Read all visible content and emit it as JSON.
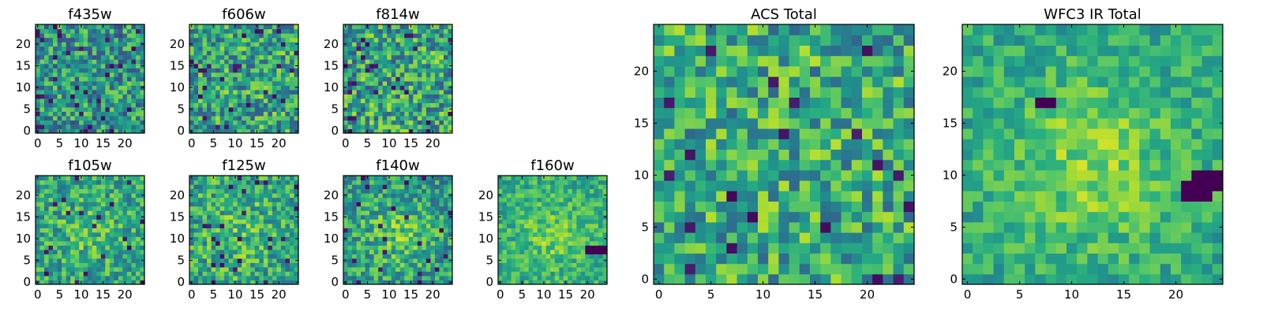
{
  "chart_data": [
    {
      "type": "heatmap",
      "title": "f435w",
      "size": [
        25,
        25
      ],
      "seed": 11,
      "base": 0.52,
      "spread": 0.3,
      "blob": 0.0,
      "dark": 0.05,
      "xticks": [
        0,
        5,
        10,
        15,
        20
      ],
      "xtick_labels": [
        "0",
        "5",
        "10",
        "15",
        "20"
      ],
      "yticks": [
        0,
        5,
        10,
        15,
        20
      ],
      "ytick_labels": [
        "0",
        "5",
        "10",
        "15",
        "20"
      ],
      "colormap": "viridis"
    },
    {
      "type": "heatmap",
      "title": "f606w",
      "size": [
        25,
        25
      ],
      "seed": 23,
      "base": 0.58,
      "spread": 0.3,
      "blob": 0.0,
      "dark": 0.04,
      "xticks": [
        0,
        5,
        10,
        15,
        20
      ],
      "xtick_labels": [
        "0",
        "5",
        "10",
        "15",
        "20"
      ],
      "yticks": [
        0,
        5,
        10,
        15,
        20
      ],
      "ytick_labels": [
        "0",
        "5",
        "10",
        "15",
        "20"
      ],
      "colormap": "viridis"
    },
    {
      "type": "heatmap",
      "title": "f814w",
      "size": [
        25,
        25
      ],
      "seed": 37,
      "base": 0.58,
      "spread": 0.32,
      "blob": 0.0,
      "dark": 0.05,
      "xticks": [
        0,
        5,
        10,
        15,
        20
      ],
      "xtick_labels": [
        "0",
        "5",
        "10",
        "15",
        "20"
      ],
      "yticks": [
        0,
        5,
        10,
        15,
        20
      ],
      "ytick_labels": [
        "0",
        "5",
        "10",
        "15",
        "20"
      ],
      "colormap": "viridis"
    },
    {
      "type": "heatmap",
      "title": "f105w",
      "size": [
        25,
        25
      ],
      "seed": 41,
      "base": 0.58,
      "spread": 0.24,
      "blob": 0.12,
      "dark": 0.04,
      "xticks": [
        0,
        5,
        10,
        15,
        20
      ],
      "xtick_labels": [
        "0",
        "5",
        "10",
        "15",
        "20"
      ],
      "yticks": [
        0,
        5,
        10,
        15,
        20
      ],
      "ytick_labels": [
        "0",
        "5",
        "10",
        "15",
        "20"
      ],
      "colormap": "viridis"
    },
    {
      "type": "heatmap",
      "title": "f125w",
      "size": [
        25,
        25
      ],
      "seed": 53,
      "base": 0.6,
      "spread": 0.26,
      "blob": 0.1,
      "dark": 0.05,
      "xticks": [
        0,
        5,
        10,
        15,
        20
      ],
      "xtick_labels": [
        "0",
        "5",
        "10",
        "15",
        "20"
      ],
      "yticks": [
        0,
        5,
        10,
        15,
        20
      ],
      "ytick_labels": [
        "0",
        "5",
        "10",
        "15",
        "20"
      ],
      "colormap": "viridis"
    },
    {
      "type": "heatmap",
      "title": "f140w",
      "size": [
        25,
        25
      ],
      "seed": 67,
      "base": 0.55,
      "spread": 0.24,
      "blob": 0.18,
      "dark": 0.03,
      "xticks": [
        0,
        5,
        10,
        15,
        20
      ],
      "xtick_labels": [
        "0",
        "5",
        "10",
        "15",
        "20"
      ],
      "yticks": [
        0,
        5,
        10,
        15,
        20
      ],
      "ytick_labels": [
        "0",
        "5",
        "10",
        "15",
        "20"
      ],
      "colormap": "viridis"
    },
    {
      "type": "heatmap",
      "title": "f160w",
      "size": [
        25,
        25
      ],
      "seed": 71,
      "base": 0.62,
      "spread": 0.18,
      "blob": 0.15,
      "dark": 0.0,
      "dark_patch": [
        [
          20,
          7
        ],
        [
          20,
          8
        ],
        [
          21,
          7
        ],
        [
          21,
          8
        ],
        [
          22,
          7
        ],
        [
          22,
          8
        ],
        [
          23,
          7
        ],
        [
          23,
          8
        ],
        [
          24,
          7
        ],
        [
          24,
          8
        ]
      ],
      "xticks": [
        0,
        5,
        10,
        15,
        20
      ],
      "xtick_labels": [
        "0",
        "5",
        "10",
        "15",
        "20"
      ],
      "yticks": [
        0,
        5,
        10,
        15,
        20
      ],
      "ytick_labels": [
        "0",
        "5",
        "10",
        "15",
        "20"
      ],
      "colormap": "viridis"
    },
    {
      "type": "heatmap",
      "title": "ACS Total",
      "size": [
        25,
        25
      ],
      "seed": 83,
      "base": 0.62,
      "spread": 0.28,
      "blob": 0.0,
      "dark": 0.035,
      "xticks": [
        0,
        5,
        10,
        15,
        20
      ],
      "xtick_labels": [
        "0",
        "5",
        "10",
        "15",
        "20"
      ],
      "yticks": [
        0,
        5,
        10,
        15,
        20
      ],
      "ytick_labels": [
        "0",
        "5",
        "10",
        "15",
        "20"
      ],
      "colormap": "viridis"
    },
    {
      "type": "heatmap",
      "title": "WFC3 IR Total",
      "size": [
        25,
        25
      ],
      "seed": 97,
      "base": 0.6,
      "spread": 0.16,
      "blob": 0.22,
      "dark": 0.0,
      "dark_patch": [
        [
          21,
          8
        ],
        [
          21,
          9
        ],
        [
          22,
          8
        ],
        [
          22,
          9
        ],
        [
          23,
          8
        ],
        [
          23,
          9
        ],
        [
          23,
          10
        ],
        [
          24,
          9
        ],
        [
          24,
          10
        ],
        [
          22,
          10
        ],
        [
          7,
          17
        ],
        [
          8,
          17
        ]
      ],
      "xticks": [
        0,
        5,
        10,
        15,
        20
      ],
      "xtick_labels": [
        "0",
        "5",
        "10",
        "15",
        "20"
      ],
      "yticks": [
        0,
        5,
        10,
        15,
        20
      ],
      "ytick_labels": [
        "0",
        "5",
        "10",
        "15",
        "20"
      ],
      "colormap": "viridis"
    }
  ]
}
